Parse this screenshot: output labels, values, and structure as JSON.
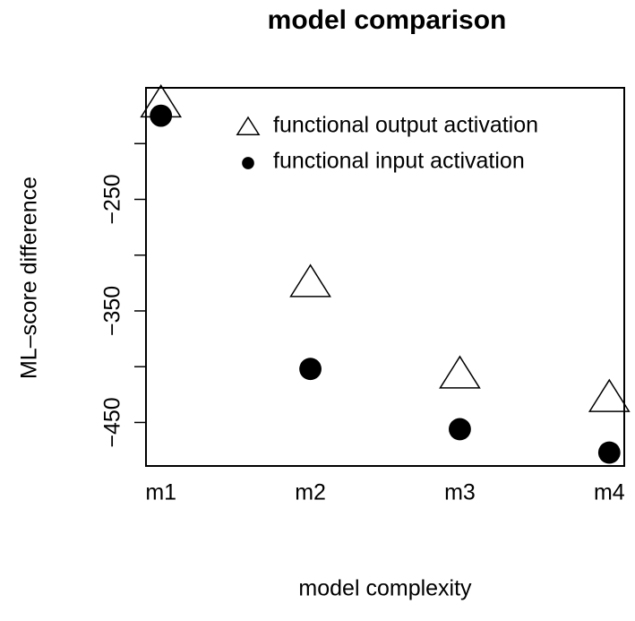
{
  "chart_data": {
    "type": "scatter",
    "title": "model comparison",
    "x_label": "model complexity",
    "y_label": "ML–score difference",
    "categories": [
      "m1",
      "m2",
      "m3",
      "m4"
    ],
    "series": [
      {
        "name": "functional output activation",
        "color": "#000000",
        "marker": "open-triangle",
        "values": [
          -164,
          -325,
          -407,
          -428
        ]
      },
      {
        "name": "functional input activation",
        "color": "#000000",
        "marker": "filled-circle",
        "values": [
          -175,
          -402,
          -456,
          -477
        ]
      }
    ],
    "ylim": [
      -489,
      -150
    ],
    "yticks": [
      {
        "value": -450,
        "label": "−450"
      },
      {
        "value": -350,
        "label": "−350"
      },
      {
        "value": -250,
        "label": "−250"
      }
    ],
    "minor_yticks": [
      -400,
      -300,
      -200
    ],
    "legend": "top-right"
  }
}
